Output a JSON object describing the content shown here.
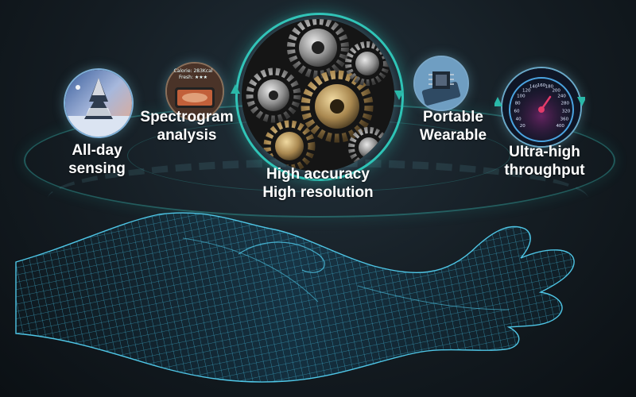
{
  "features": [
    {
      "id": "all-day",
      "lines": [
        "All-day",
        "sensing"
      ]
    },
    {
      "id": "spectrogram",
      "lines": [
        "Spectrogram",
        "analysis"
      ]
    },
    {
      "id": "accuracy",
      "lines": [
        "High accuracy",
        "High resolution"
      ]
    },
    {
      "id": "portable",
      "lines": [
        "Portable",
        "Wearable"
      ]
    },
    {
      "id": "throughput",
      "lines": [
        "Ultra-high",
        "throughput"
      ]
    }
  ],
  "phone_screen": {
    "line1": "Calorie: 283Kcal",
    "line2": "Fresh: ★★★"
  },
  "speedometer": {
    "ticks": [
      "20",
      "40",
      "60",
      "80",
      "100",
      "120",
      "140",
      "160",
      "180",
      "200",
      "240",
      "280",
      "320",
      "360",
      "400"
    ]
  },
  "colors": {
    "accent": "#2ec4b6",
    "arrow": "#2ab8a8",
    "speedo_needle": "#e33b6a",
    "hand": "#3fb7d8"
  },
  "icons": [
    "snow-tree-icon",
    "phone-food-icon",
    "gears-icon",
    "chip-icon",
    "speedometer-icon",
    "wireframe-hand-icon"
  ]
}
